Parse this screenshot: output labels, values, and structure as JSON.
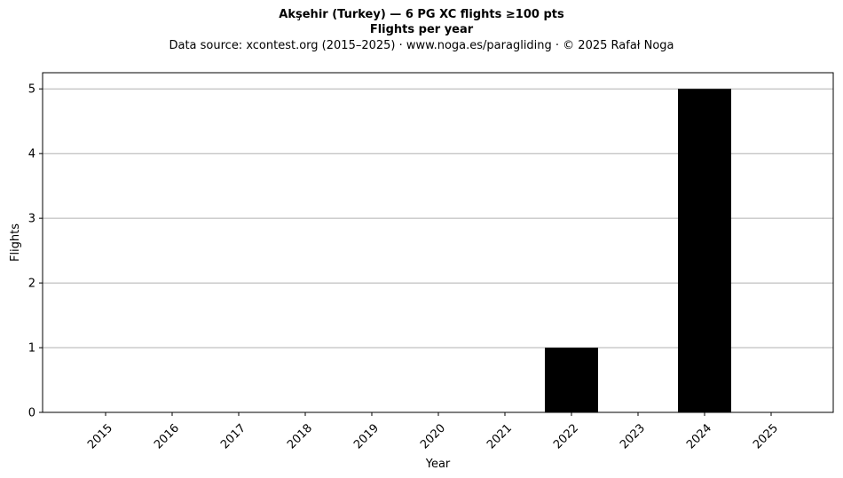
{
  "chart_data": {
    "type": "bar",
    "title": "Akşehir (Turkey)  —  6 PG XC flights ≥100 pts",
    "subtitle": "Flights per year",
    "source_note": "Data source: xcontest.org (2015–2025)  ·  www.noga.es/paragliding  ·  © 2025 Rafał Noga",
    "xlabel": "Year",
    "ylabel": "Flights",
    "categories": [
      "2015",
      "2016",
      "2017",
      "2018",
      "2019",
      "2020",
      "2021",
      "2022",
      "2023",
      "2024",
      "2025"
    ],
    "values": [
      0,
      0,
      0,
      0,
      0,
      0,
      0,
      1,
      0,
      5,
      0
    ],
    "yticks": [
      0,
      1,
      2,
      3,
      4,
      5
    ],
    "ylim": [
      0,
      5.25
    ],
    "grid": "y",
    "bar_color": "#000000",
    "grid_color": "#b0b0b0"
  }
}
